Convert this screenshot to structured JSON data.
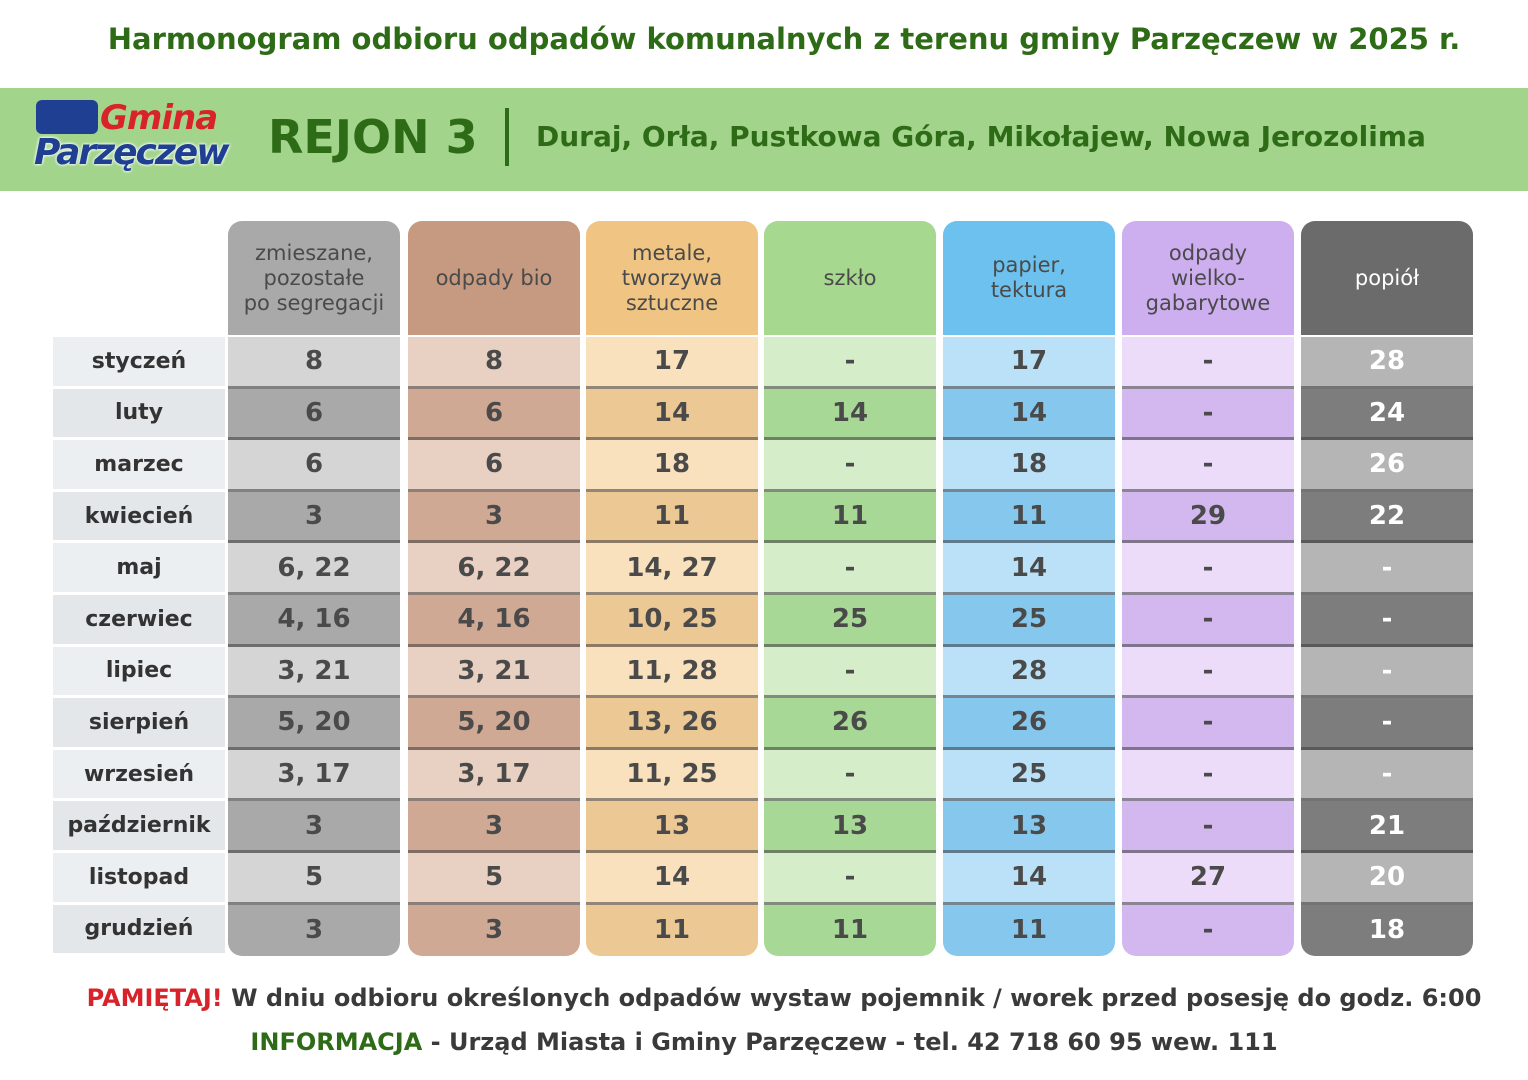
{
  "header": {
    "title": "Harmonogram odbioru odpadów komunalnych z terenu gminy Parzęczew w 2025 r.",
    "logo": {
      "line1": "Gmina",
      "line2": "Parzęczew"
    },
    "region": "REJON 3",
    "places": "Duraj, Orła, Pustkowa Góra, Mikołajew, Nowa Jerozolima"
  },
  "table": {
    "columns": [
      "zmieszane,\npozostałe\npo segregacji",
      "odpady bio",
      "metale,\ntworzywa\nsztuczne",
      "szkło",
      "papier,\ntektura",
      "odpady\nwielko-\ngabarytowe",
      "popiół"
    ],
    "rows": [
      [
        "styczeń",
        "8",
        "8",
        "17",
        "-",
        "17",
        "-",
        "28"
      ],
      [
        "luty",
        "6",
        "6",
        "14",
        "14",
        "14",
        "-",
        "24"
      ],
      [
        "marzec",
        "6",
        "6",
        "18",
        "-",
        "18",
        "-",
        "26"
      ],
      [
        "kwiecień",
        "3",
        "3",
        "11",
        "11",
        "11",
        "29",
        "22"
      ],
      [
        "maj",
        "6, 22",
        "6, 22",
        "14, 27",
        "-",
        "14",
        "-",
        "-"
      ],
      [
        "czerwiec",
        "4, 16",
        "4, 16",
        "10, 25",
        "25",
        "25",
        "-",
        "-"
      ],
      [
        "lipiec",
        "3, 21",
        "3, 21",
        "11, 28",
        "-",
        "28",
        "-",
        "-"
      ],
      [
        "sierpień",
        "5, 20",
        "5, 20",
        "13, 26",
        "26",
        "26",
        "-",
        "-"
      ],
      [
        "wrzesień",
        "3, 17",
        "3, 17",
        "11, 25",
        "-",
        "25",
        "-",
        "-"
      ],
      [
        "październik",
        "3",
        "3",
        "13",
        "13",
        "13",
        "-",
        "21"
      ],
      [
        "listopad",
        "5",
        "5",
        "14",
        "-",
        "14",
        "27",
        "20"
      ],
      [
        "grudzień",
        "3",
        "3",
        "11",
        "11",
        "11",
        "-",
        "18"
      ]
    ]
  },
  "footer": {
    "remember": "PAMIĘTAJ!",
    "remember_text": "W dniu odbioru określonych odpadów wystaw pojemnik / worek przed posesję do godz. 6:00",
    "info": "INFORMACJA",
    "info_text": " - Urząd Miasta i Gminy Parzęczew  - tel. 42 718 60 95 wew. 111"
  }
}
